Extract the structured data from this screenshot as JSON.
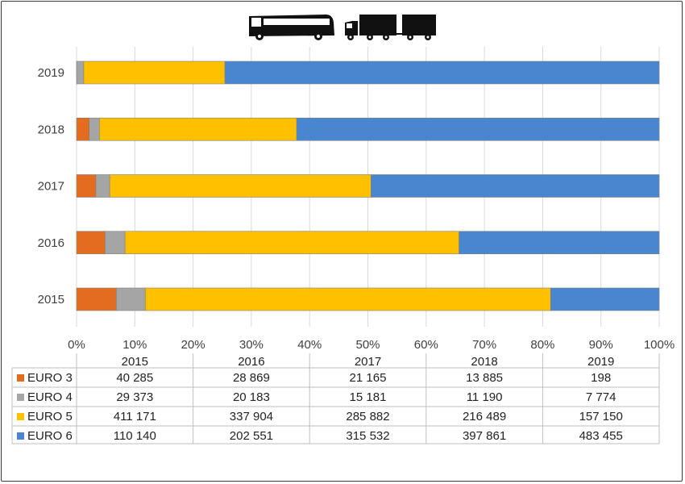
{
  "chart_data": {
    "type": "bar",
    "orientation": "horizontal",
    "stacked": "percent",
    "categories": [
      "2015",
      "2016",
      "2017",
      "2018",
      "2019"
    ],
    "series": [
      {
        "name": "EURO 3",
        "color": "#E46C21",
        "values": [
          40285,
          28869,
          21165,
          13885,
          198
        ]
      },
      {
        "name": "EURO 4",
        "color": "#A5A5A5",
        "values": [
          29373,
          20183,
          15181,
          11190,
          7774
        ]
      },
      {
        "name": "EURO 5",
        "color": "#FFC000",
        "values": [
          411171,
          337904,
          285882,
          216489,
          157150
        ]
      },
      {
        "name": "EURO 6",
        "color": "#4A86D0",
        "values": [
          110140,
          202551,
          315532,
          397861,
          483455
        ]
      }
    ],
    "x_ticks": [
      "0%",
      "10%",
      "20%",
      "30%",
      "40%",
      "50%",
      "60%",
      "70%",
      "80%",
      "90%",
      "100%"
    ],
    "xlim": [
      0,
      100
    ],
    "grid": true,
    "data_table": {
      "columns": [
        "2015",
        "2016",
        "2017",
        "2018",
        "2019"
      ],
      "rows": [
        {
          "label": "EURO 3",
          "cells": [
            "40 285",
            "28 869",
            "21 165",
            "13 885",
            "198"
          ]
        },
        {
          "label": "EURO 4",
          "cells": [
            "29 373",
            "20 183",
            "15 181",
            "11 190",
            "7 774"
          ]
        },
        {
          "label": "EURO 5",
          "cells": [
            "411 171",
            "337 904",
            "285 882",
            "216 489",
            "157 150"
          ]
        },
        {
          "label": "EURO 6",
          "cells": [
            "110 140",
            "202 551",
            "315 532",
            "397 861",
            "483 455"
          ]
        }
      ]
    },
    "header_icons": [
      "bus-icon",
      "truck-trailer-icon"
    ]
  }
}
